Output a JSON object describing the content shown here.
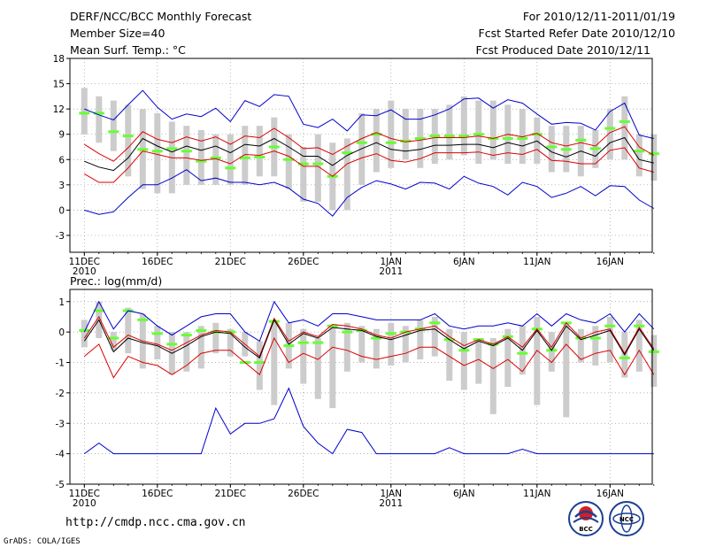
{
  "header": {
    "title": "DERF/NCC/BCC Monthly Forecast",
    "member_size": "Member Size=40",
    "variable": "Mean Surf. Temp.: °C",
    "period": "For 2010/12/11-2011/01/19",
    "started": "Fcst Started Refer Date 2010/12/10",
    "produced": "Fcst Produced Date 2010/12/11"
  },
  "footer": {
    "url": "http://cmdp.ncc.cma.gov.cn",
    "credit": "GrADS: COLA/IGES",
    "logo1": "BCC",
    "logo2": "NCC"
  },
  "colors": {
    "box": "#cccccc",
    "median": "#66ff33",
    "mean": "#000000",
    "spread": "#dd0000",
    "extreme": "#0000cc",
    "grid": "#999999"
  },
  "chart_data": [
    {
      "type": "box-ensemble",
      "title": "Mean Surf. Temp.: °C",
      "ylim": [
        -5,
        18
      ],
      "yticks": [
        "18",
        "15",
        "12",
        "9",
        "6",
        "3",
        "0",
        "-3"
      ],
      "ytick_values": [
        18,
        15,
        12,
        9,
        6,
        3,
        0,
        -3
      ],
      "xticks": [
        {
          "day": 0,
          "label": "11DEC",
          "sub": "2010"
        },
        {
          "day": 5,
          "label": "16DEC",
          "sub": ""
        },
        {
          "day": 10,
          "label": "21DEC",
          "sub": ""
        },
        {
          "day": 15,
          "label": "26DEC",
          "sub": ""
        },
        {
          "day": 21,
          "label": "1JAN",
          "sub": "2011"
        },
        {
          "day": 26,
          "label": "6JAN",
          "sub": ""
        },
        {
          "day": 31,
          "label": "11JAN",
          "sub": ""
        },
        {
          "day": 36,
          "label": "16JAN",
          "sub": ""
        }
      ],
      "box_low": [
        9.0,
        8.0,
        7.0,
        4.0,
        2.5,
        2.0,
        2.0,
        3.0,
        3.0,
        3.0,
        3.0,
        3.0,
        4.0,
        4.0,
        2.5,
        1.0,
        1.0,
        0.0,
        0.0,
        3.0,
        4.5,
        5.0,
        6.0,
        5.0,
        5.5,
        6.0,
        6.5,
        5.5,
        6.0,
        5.5,
        5.5,
        5.5,
        4.5,
        4.5,
        4.0,
        5.0,
        6.0,
        6.0,
        4.0,
        3.5
      ],
      "box_high": [
        14.5,
        13.5,
        13.0,
        12.5,
        12.0,
        11.5,
        10.5,
        10.0,
        9.5,
        9.0,
        9.0,
        10.0,
        10.0,
        11.0,
        9.0,
        7.5,
        9.0,
        8.0,
        8.5,
        11.5,
        12.0,
        13.0,
        12.0,
        12.0,
        12.0,
        12.5,
        13.5,
        13.0,
        13.0,
        12.5,
        12.0,
        11.0,
        10.0,
        10.0,
        10.0,
        9.5,
        12.0,
        13.5,
        9.0,
        9.0
      ],
      "median": [
        11.5,
        11.5,
        9.3,
        8.8,
        7.2,
        7.0,
        7.3,
        7.0,
        5.8,
        6.2,
        5.0,
        6.2,
        6.3,
        7.5,
        6.0,
        5.5,
        5.5,
        4.0,
        6.8,
        8.0,
        9.0,
        8.0,
        8.2,
        8.5,
        8.8,
        8.8,
        8.8,
        9.0,
        8.5,
        8.5,
        8.5,
        9.0,
        7.5,
        7.2,
        8.3,
        7.3,
        9.7,
        10.5,
        7.0,
        6.7
      ],
      "mean": [
        5.8,
        5.1,
        4.7,
        6.2,
        8.5,
        7.6,
        6.9,
        7.6,
        7.1,
        7.6,
        6.8,
        7.8,
        7.6,
        8.5,
        7.5,
        6.4,
        6.4,
        5.3,
        6.5,
        7.3,
        8.0,
        7.2,
        7.0,
        7.2,
        7.7,
        7.7,
        7.8,
        7.8,
        7.4,
        8.0,
        7.6,
        8.2,
        6.9,
        6.3,
        7.0,
        6.4,
        8.0,
        8.6,
        6.0,
        5.6
      ],
      "spread_high": [
        7.8,
        6.7,
        5.8,
        7.4,
        9.3,
        8.4,
        8.0,
        8.7,
        8.2,
        8.7,
        7.8,
        8.8,
        8.6,
        9.7,
        8.6,
        7.3,
        7.4,
        6.6,
        7.6,
        8.5,
        9.2,
        8.5,
        8.1,
        8.3,
        8.6,
        8.6,
        8.6,
        8.8,
        8.5,
        9.0,
        8.7,
        9.1,
        8.0,
        7.6,
        8.0,
        7.6,
        9.2,
        9.9,
        7.5,
        6.5
      ],
      "spread_low": [
        4.3,
        3.3,
        3.3,
        5.0,
        7.0,
        6.6,
        6.2,
        6.2,
        5.9,
        6.1,
        5.5,
        6.6,
        6.5,
        7.0,
        6.4,
        5.2,
        5.2,
        4.0,
        5.5,
        6.2,
        6.7,
        5.9,
        5.7,
        6.1,
        6.8,
        6.8,
        6.8,
        6.9,
        6.5,
        6.8,
        6.6,
        7.2,
        5.9,
        5.8,
        5.5,
        5.5,
        7.1,
        7.4,
        5.0,
        4.5
      ],
      "max": [
        12.0,
        11.3,
        10.7,
        12.5,
        14.2,
        12.2,
        10.8,
        11.4,
        11.1,
        12.1,
        10.5,
        13.0,
        12.3,
        13.7,
        13.5,
        10.2,
        9.8,
        10.8,
        9.4,
        11.3,
        11.2,
        11.9,
        10.8,
        10.8,
        11.3,
        12.0,
        13.2,
        13.3,
        12.1,
        13.1,
        12.7,
        11.4,
        10.2,
        10.4,
        10.3,
        9.5,
        11.7,
        12.7,
        8.9,
        8.5
      ],
      "min": [
        0.0,
        -0.5,
        -0.2,
        1.5,
        3.0,
        3.0,
        3.8,
        4.8,
        3.5,
        3.8,
        3.3,
        3.3,
        3.0,
        3.3,
        2.6,
        1.3,
        0.8,
        -0.7,
        1.5,
        2.7,
        3.5,
        3.1,
        2.5,
        3.3,
        3.2,
        2.5,
        4.0,
        3.2,
        2.8,
        1.8,
        3.3,
        2.8,
        1.5,
        2.0,
        2.8,
        1.7,
        2.9,
        2.8,
        1.2,
        0.2
      ]
    },
    {
      "type": "box-ensemble",
      "title": "Prec.: log(mm/d)",
      "ylim": [
        -5,
        1.4
      ],
      "yticks": [
        "1",
        "0",
        "-1",
        "-2",
        "-3",
        "-4",
        "-5"
      ],
      "ytick_values": [
        1,
        0,
        -1,
        -2,
        -3,
        -4,
        -5
      ],
      "xticks": [
        {
          "day": 0,
          "label": "11DEC",
          "sub": "2010"
        },
        {
          "day": 5,
          "label": "16DEC",
          "sub": ""
        },
        {
          "day": 10,
          "label": "21DEC",
          "sub": ""
        },
        {
          "day": 15,
          "label": "26DEC",
          "sub": ""
        },
        {
          "day": 21,
          "label": "1JAN",
          "sub": "2011"
        },
        {
          "day": 26,
          "label": "6JAN",
          "sub": ""
        },
        {
          "day": 31,
          "label": "11JAN",
          "sub": ""
        },
        {
          "day": 36,
          "label": "16JAN",
          "sub": ""
        }
      ],
      "box_low": [
        -0.5,
        -0.2,
        -0.6,
        -0.7,
        -1.2,
        -0.9,
        -1.4,
        -1.3,
        -1.2,
        -0.7,
        -0.8,
        -0.8,
        -1.9,
        -2.4,
        -1.2,
        -1.7,
        -2.2,
        -2.5,
        -1.3,
        -1.0,
        -1.2,
        -1.1,
        -1.0,
        -0.9,
        -0.8,
        -1.6,
        -1.9,
        -1.7,
        -2.7,
        -1.8,
        -1.4,
        -2.4,
        -1.3,
        -2.8,
        -1.0,
        -1.1,
        -1.0,
        -1.5,
        -1.3,
        -1.8
      ],
      "box_high": [
        0.4,
        1.0,
        0.0,
        0.8,
        0.6,
        0.2,
        0.0,
        0.0,
        0.2,
        0.3,
        0.1,
        0.0,
        -0.3,
        0.4,
        0.3,
        0.1,
        -0.2,
        0.2,
        0.3,
        0.2,
        0.1,
        0.3,
        0.2,
        0.4,
        0.5,
        0.1,
        0.0,
        -0.2,
        -0.2,
        0.1,
        0.2,
        0.5,
        0.0,
        0.3,
        0.1,
        0.2,
        0.5,
        0.0,
        0.4,
        -0.1
      ],
      "median": [
        0.05,
        0.7,
        -0.2,
        0.7,
        0.4,
        -0.05,
        -0.4,
        -0.1,
        0.05,
        0.0,
        0.0,
        -1.0,
        -1.0,
        0.35,
        -0.45,
        -0.35,
        -0.35,
        0.2,
        0.0,
        0.05,
        -0.2,
        -0.05,
        0.0,
        0.1,
        0.3,
        -0.25,
        -0.6,
        -0.25,
        -0.4,
        -0.15,
        -0.7,
        0.1,
        -0.6,
        0.3,
        -0.2,
        -0.2,
        0.2,
        -0.85,
        0.2,
        -0.65
      ],
      "mean": [
        -0.3,
        0.4,
        -0.65,
        -0.2,
        -0.35,
        -0.45,
        -0.7,
        -0.45,
        -0.15,
        0.0,
        -0.05,
        -0.5,
        -0.85,
        0.4,
        -0.4,
        -0.05,
        -0.2,
        0.15,
        0.1,
        0.05,
        -0.15,
        -0.25,
        -0.1,
        0.05,
        0.1,
        -0.25,
        -0.55,
        -0.3,
        -0.45,
        -0.2,
        -0.6,
        0.05,
        -0.6,
        0.2,
        -0.25,
        -0.1,
        0.05,
        -0.75,
        0.1,
        -0.6
      ],
      "spread_high": [
        -0.2,
        0.5,
        -0.5,
        -0.1,
        -0.3,
        -0.4,
        -0.6,
        -0.35,
        -0.1,
        0.05,
        0.0,
        -0.4,
        -0.8,
        0.45,
        -0.3,
        0.0,
        -0.15,
        0.25,
        0.2,
        0.1,
        -0.1,
        -0.2,
        0.0,
        0.1,
        0.2,
        -0.15,
        -0.45,
        -0.25,
        -0.4,
        -0.15,
        -0.5,
        0.1,
        -0.5,
        0.3,
        -0.2,
        0.0,
        0.1,
        -0.7,
        0.15,
        -0.55
      ],
      "spread_low": [
        -0.8,
        -0.4,
        -1.5,
        -0.8,
        -1.0,
        -1.1,
        -1.4,
        -1.1,
        -0.7,
        -0.6,
        -0.6,
        -1.0,
        -1.4,
        -0.2,
        -1.0,
        -0.7,
        -0.9,
        -0.5,
        -0.6,
        -0.8,
        -0.9,
        -0.8,
        -0.7,
        -0.5,
        -0.5,
        -0.8,
        -1.1,
        -0.9,
        -1.2,
        -0.9,
        -1.3,
        -0.6,
        -1.0,
        -0.4,
        -0.9,
        -0.7,
        -0.6,
        -1.4,
        -0.6,
        -1.4
      ],
      "max": [
        0.0,
        1.0,
        0.1,
        0.7,
        0.6,
        0.2,
        -0.1,
        0.2,
        0.5,
        0.6,
        0.6,
        0.0,
        -0.3,
        1.0,
        0.3,
        0.4,
        0.2,
        0.6,
        0.6,
        0.5,
        0.4,
        0.4,
        0.4,
        0.4,
        0.6,
        0.2,
        0.1,
        0.2,
        0.2,
        0.3,
        0.2,
        0.6,
        0.2,
        0.6,
        0.4,
        0.3,
        0.6,
        0.0,
        0.6,
        0.1
      ],
      "min": [
        -4.0,
        -3.65,
        -4.0,
        -4.0,
        -4.0,
        -4.0,
        -4.0,
        -4.0,
        -4.0,
        -2.5,
        -3.35,
        -3.0,
        -3.0,
        -2.85,
        -1.85,
        -3.1,
        -3.65,
        -4.0,
        -3.2,
        -3.3,
        -4.0,
        -4.0,
        -4.0,
        -4.0,
        -4.0,
        -3.8,
        -4.0,
        -4.0,
        -4.0,
        -4.0,
        -3.85,
        -4.0,
        -4.0,
        -4.0,
        -4.0,
        -4.0,
        -4.0,
        -4.0,
        -4.0,
        -4.0
      ]
    }
  ]
}
